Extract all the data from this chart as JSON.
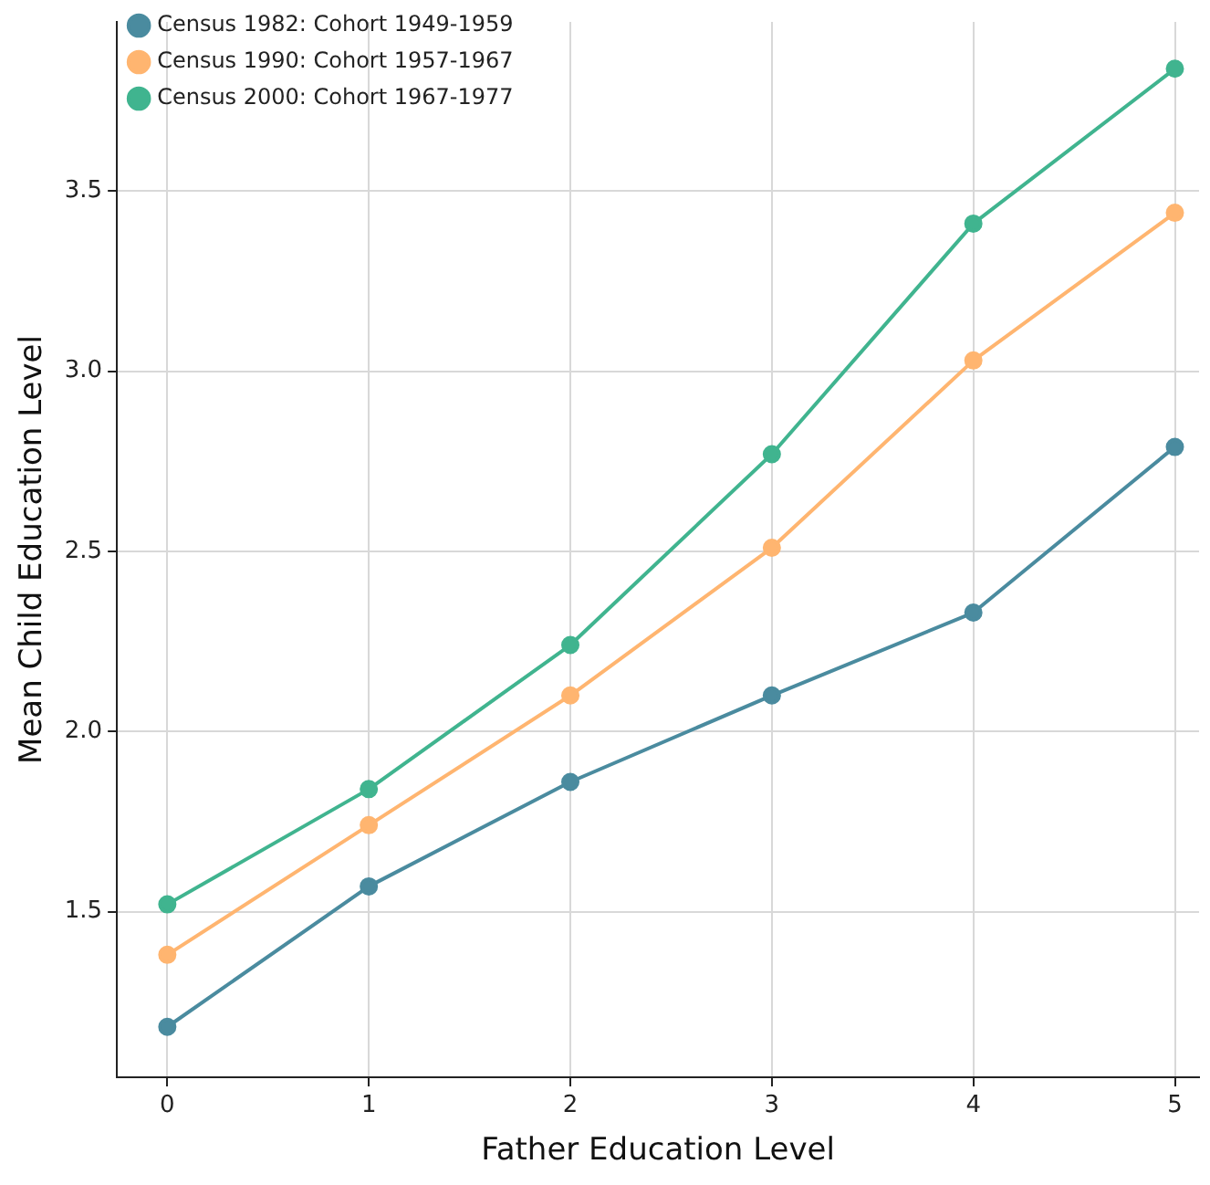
{
  "chart_data": {
    "type": "line",
    "xlabel": "Father Education Level",
    "ylabel": "Mean Child Education Level",
    "x": [
      0,
      1,
      2,
      3,
      4,
      5
    ],
    "series": [
      {
        "name": "Census 1982: Cohort 1949-1959",
        "color": "#4a8b9f",
        "values": [
          1.18,
          1.57,
          1.86,
          2.1,
          2.33,
          2.79
        ]
      },
      {
        "name": "Census 1990: Cohort 1957-1967",
        "color": "#ffb570",
        "values": [
          1.38,
          1.74,
          2.1,
          2.51,
          3.03,
          3.44
        ]
      },
      {
        "name": "Census 2000: Cohort 1967-1977",
        "color": "#40b48f",
        "values": [
          1.52,
          1.84,
          2.24,
          2.77,
          3.41,
          3.84
        ]
      }
    ],
    "xlim": [
      -0.25,
      5.12
    ],
    "xticks": [
      0,
      1,
      2,
      3,
      4,
      5
    ],
    "ylim": [
      1.04,
      3.97
    ],
    "yticks": [
      {
        "value": 1.5,
        "label": "1.5"
      },
      {
        "value": 2.0,
        "label": "2.0"
      },
      {
        "value": 2.5,
        "label": "2.5"
      },
      {
        "value": 3.0,
        "label": "3.0"
      },
      {
        "value": 3.5,
        "label": "3.5"
      }
    ],
    "grid": true,
    "legend": "top left",
    "marker": "circle",
    "line_style": "solid"
  }
}
